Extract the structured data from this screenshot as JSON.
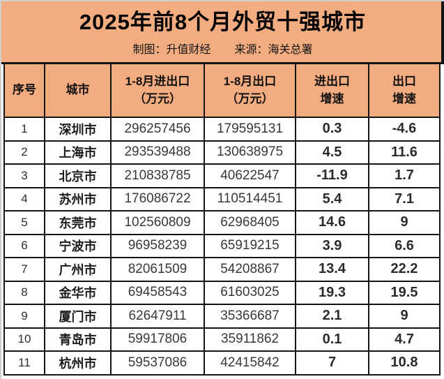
{
  "header": {
    "title": "2025年前8个月外贸十强城市",
    "credit": "制图：升值财经",
    "source": "来源：海关总署"
  },
  "colors": {
    "banner_bg": "#F2AC80",
    "cell_bg": "#FFFFFF",
    "grid": "#141414",
    "title_text": "#000000",
    "body_text": "#333333",
    "page_edge": "#CFCFCF"
  },
  "chart_data": {
    "type": "table",
    "title": "2025年前8个月外贸十强城市",
    "columns": [
      "序号",
      "城市",
      "1-8月进出口（万元）",
      "1-8月出口（万元）",
      "进出口增速",
      "出口增速"
    ],
    "column_display": [
      "序号",
      "城市",
      "1-8月进出口\n（万元）",
      "1-8月出口\n（万元）",
      "进出口\n增速",
      "出口\n增速"
    ],
    "rows": [
      [
        "1",
        "深圳市",
        "296257456",
        "179595131",
        "0.3",
        "-4.6"
      ],
      [
        "2",
        "上海市",
        "293539488",
        "130638975",
        "4.5",
        "11.6"
      ],
      [
        "3",
        "北京市",
        "210838785",
        "40622547",
        "-11.9",
        "1.7"
      ],
      [
        "4",
        "苏州市",
        "176086722",
        "110514451",
        "5.4",
        "7.1"
      ],
      [
        "5",
        "东莞市",
        "102560809",
        "62968405",
        "14.6",
        "9"
      ],
      [
        "6",
        "宁波市",
        "96958239",
        "65919215",
        "3.9",
        "6.6"
      ],
      [
        "7",
        "广州市",
        "82061509",
        "54208867",
        "13.4",
        "22.2"
      ],
      [
        "8",
        "金华市",
        "69458543",
        "61603025",
        "19.3",
        "19.5"
      ],
      [
        "9",
        "厦门市",
        "62647911",
        "35366687",
        "2.1",
        "9"
      ],
      [
        "10",
        "青岛市",
        "59917806",
        "35911862",
        "0.1",
        "4.7"
      ],
      [
        "11",
        "杭州市",
        "59537086",
        "42415842",
        "7",
        "10.8"
      ]
    ]
  }
}
